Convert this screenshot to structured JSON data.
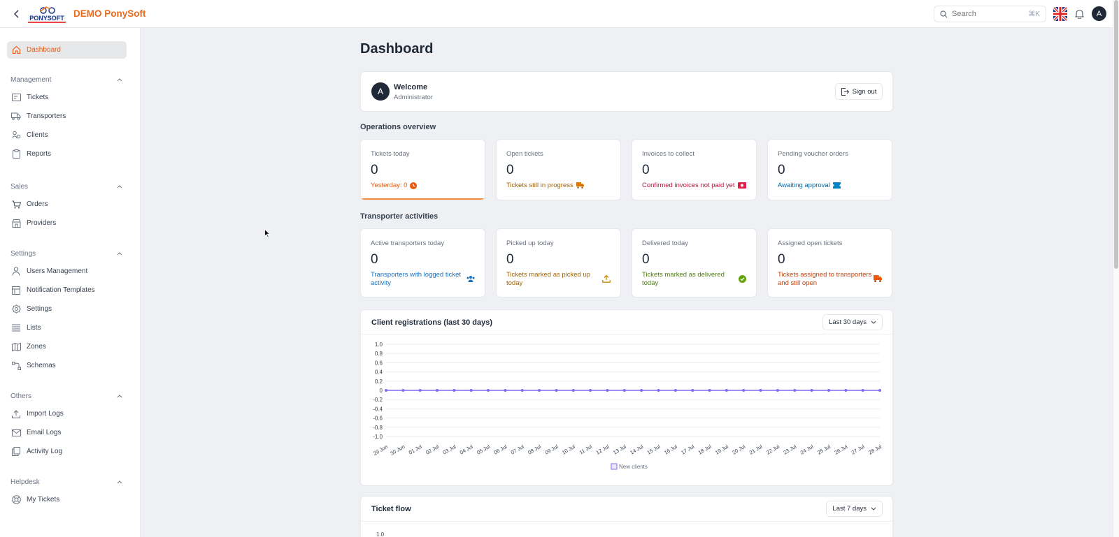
{
  "brand": {
    "name": "DEMO PonySoft",
    "logo_text": "PONYSOFT"
  },
  "search": {
    "placeholder": "Search",
    "shortcut": "⌘K"
  },
  "user_initial": "A",
  "sidebar": {
    "dashboard": "Dashboard",
    "sections": [
      {
        "title": "Management",
        "items": [
          "Tickets",
          "Transporters",
          "Clients",
          "Reports"
        ]
      },
      {
        "title": "Sales",
        "items": [
          "Orders",
          "Providers"
        ]
      },
      {
        "title": "Settings",
        "items": [
          "Users Management",
          "Notification Templates",
          "Settings",
          "Lists",
          "Zones",
          "Schemas"
        ]
      },
      {
        "title": "Others",
        "items": [
          "Import Logs",
          "Email Logs",
          "Activity Log"
        ]
      },
      {
        "title": "Helpdesk",
        "items": [
          "My Tickets"
        ]
      }
    ]
  },
  "page_title": "Dashboard",
  "welcome": {
    "initial": "A",
    "title": "Welcome",
    "role": "Administrator",
    "signout": "Sign out"
  },
  "operations": {
    "title": "Operations overview",
    "cards": [
      {
        "label": "Tickets today",
        "value": "0",
        "note": "Yesterday: 0",
        "color": "#ea580c",
        "icon": "clock-icon"
      },
      {
        "label": "Open tickets",
        "value": "0",
        "note": "Tickets still in progress",
        "color": "#a16207",
        "icon": "truck-icon"
      },
      {
        "label": "Invoices to collect",
        "value": "0",
        "note": "Confirmed invoices not paid yet",
        "color": "#be123c",
        "icon": "money-icon"
      },
      {
        "label": "Pending voucher orders",
        "value": "0",
        "note": "Awaiting approval",
        "color": "#0369a1",
        "icon": "ticket-icon"
      }
    ]
  },
  "transporters": {
    "title": "Transporter activities",
    "cards": [
      {
        "label": "Active transporters today",
        "value": "0",
        "note": "Transporters with logged ticket activity",
        "color": "#1d6fb8",
        "icon": "users-icon"
      },
      {
        "label": "Picked up today",
        "value": "0",
        "note": "Tickets marked as picked up today",
        "color": "#a16207",
        "icon": "upload-icon"
      },
      {
        "label": "Delivered today",
        "value": "0",
        "note": "Tickets marked as delivered today",
        "color": "#4d7c0f",
        "icon": "check-circle-icon"
      },
      {
        "label": "Assigned open tickets",
        "value": "0",
        "note": "Tickets assigned to transporters and still open",
        "color": "#c2410c",
        "icon": "truck-icon"
      }
    ]
  },
  "client_chart": {
    "title": "Client registrations (last 30 days)",
    "range": "Last 30 days"
  },
  "ticket_flow": {
    "title": "Ticket flow",
    "range": "Last 7 days",
    "first_tick": "1.0"
  },
  "chart_data": {
    "type": "line",
    "title": "Client registrations (last 30 days)",
    "xlabel": "",
    "ylabel": "",
    "ylim": [
      -1.0,
      1.0
    ],
    "yticks": [
      "1.0",
      "0.8",
      "0.6",
      "0.4",
      "0.2",
      "0",
      "-0.2",
      "-0.4",
      "-0.6",
      "-0.8",
      "-1.0"
    ],
    "categories": [
      "29 Jun",
      "30 Jun",
      "01 Jul",
      "02 Jul",
      "03 Jul",
      "04 Jul",
      "05 Jul",
      "06 Jul",
      "07 Jul",
      "08 Jul",
      "09 Jul",
      "10 Jul",
      "11 Jul",
      "12 Jul",
      "13 Jul",
      "14 Jul",
      "15 Jul",
      "16 Jul",
      "17 Jul",
      "18 Jul",
      "19 Jul",
      "20 Jul",
      "21 Jul",
      "22 Jul",
      "23 Jul",
      "24 Jul",
      "25 Jul",
      "26 Jul",
      "27 Jul",
      "28 Jul"
    ],
    "series": [
      {
        "name": "New clients",
        "color": "#7c6cf0",
        "values": [
          0,
          0,
          0,
          0,
          0,
          0,
          0,
          0,
          0,
          0,
          0,
          0,
          0,
          0,
          0,
          0,
          0,
          0,
          0,
          0,
          0,
          0,
          0,
          0,
          0,
          0,
          0,
          0,
          0,
          0
        ]
      }
    ],
    "grid": true,
    "legend": "bottom-center"
  }
}
